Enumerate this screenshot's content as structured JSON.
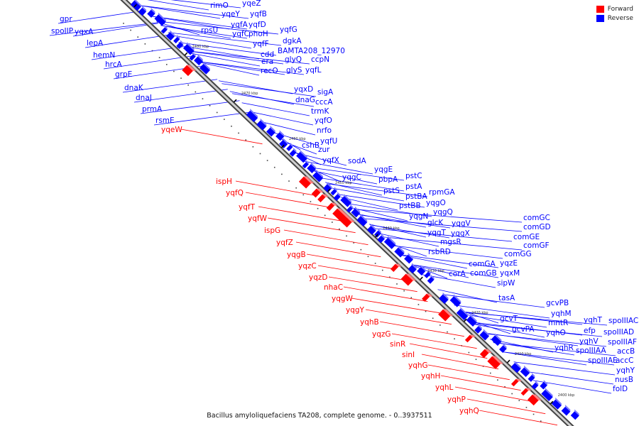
{
  "legend": {
    "forward_label": "Forward",
    "reverse_label": "Reverse",
    "forward_color": "#ff0000",
    "reverse_color": "#0000ff"
  },
  "caption": "Bacillus amyloliquefaciens TA208, complete genome. - 0..3937511",
  "ticks": [
    "2490 kbp",
    "2480 kbp",
    "2470 kbp",
    "2460 kbp",
    "2450 kbp",
    "2440 kbp",
    "2430 kbp",
    "2420 kbp",
    "2410 kbp",
    "2400 kbp"
  ],
  "reverse_genes": [
    "rimO",
    "yqeZ",
    "yqeY",
    "yqfB",
    "rpsU",
    "yqfA",
    "yqfD",
    "yqfC",
    "phoH",
    "yqfG",
    "yqfF",
    "dgkA",
    "cdd",
    "BAMTA208_12970",
    "era",
    "glyQ",
    "ccpN",
    "recO",
    "glyS",
    "yqfL",
    "yqxD",
    "sigA",
    "dnaG",
    "cccA",
    "trmK",
    "yqfO",
    "nrfo",
    "yqfU",
    "cshB",
    "zur",
    "yqfX",
    "sodA",
    "yqgC",
    "yqgE",
    "pbpA",
    "pstC",
    "pstS",
    "pstA",
    "pstBA",
    "rpmGA",
    "pstBB",
    "yqgO",
    "yqgN",
    "yqgQ",
    "yqgV",
    "glcK",
    "yqgT",
    "yqgX",
    "mgsR",
    "rsbRD",
    "comGC",
    "comGD",
    "comGE",
    "comGF",
    "comGG",
    "comGA",
    "yqzE",
    "comGB",
    "yqxM",
    "corA",
    "sipW",
    "tasA",
    "gcvPB",
    "yqhM",
    "gcvT",
    "mntR",
    "gcvPA",
    "yqhO",
    "yqhT",
    "spoIIIAC",
    "efp",
    "spoIIIAD",
    "yqhV",
    "spoIIIAF",
    "yqhR",
    "spoIIIAA",
    "accB",
    "spoIIIAE",
    "accC",
    "yqhY",
    "nusB",
    "folD",
    "gpr",
    "spoIIP",
    "yqxA",
    "lepA",
    "hemN",
    "hrcA",
    "grpE",
    "dnaK",
    "dnaJ",
    "prmA",
    "rsmE"
  ],
  "forward_genes": [
    "yqeW",
    "ispH",
    "yqfQ",
    "yqfT",
    "yqfW",
    "ispG",
    "yqfZ",
    "yqgB",
    "yqzC",
    "yqzD",
    "nhaC",
    "yqgW",
    "yqgY",
    "yqhB",
    "yqzG",
    "sinR",
    "sinI",
    "yqhG",
    "yqhH",
    "yqhL",
    "yqhP",
    "yqhQ"
  ]
}
